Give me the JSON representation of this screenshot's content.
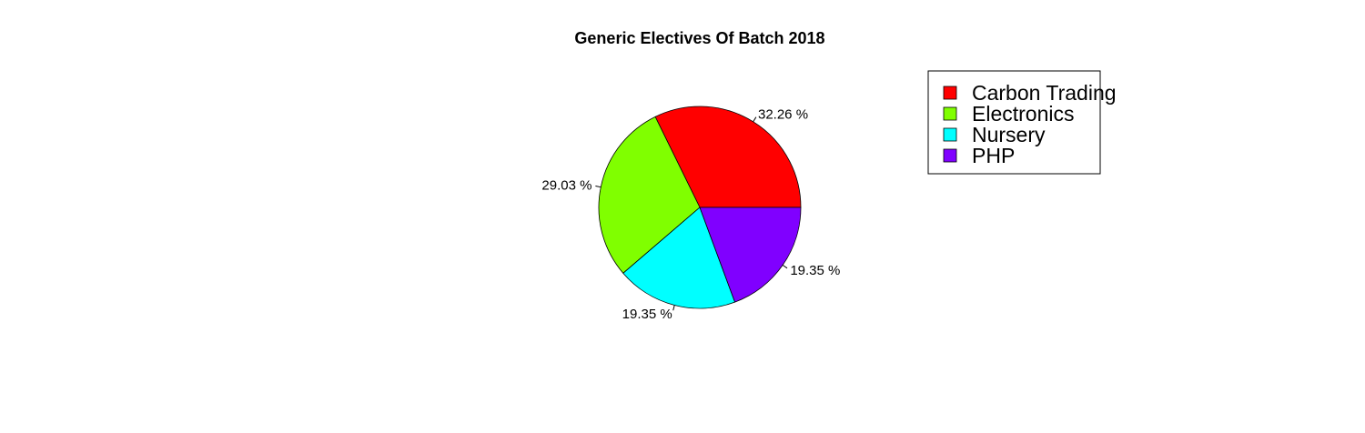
{
  "chart_data": {
    "type": "pie",
    "title": "Generic Electives Of Batch 2018",
    "categories": [
      "Carbon Trading",
      "Electronics",
      "Nursery",
      "PHP"
    ],
    "values": [
      32.26,
      29.03,
      19.35,
      19.35
    ],
    "labels": [
      "32.26 %",
      "29.03 %",
      "19.35 %",
      "19.35 %"
    ],
    "colors": [
      "#FF0000",
      "#80FF00",
      "#00FFFF",
      "#8000FF"
    ],
    "legend_position": "top-right",
    "start_angle_deg": 0,
    "direction": "counterclockwise"
  }
}
